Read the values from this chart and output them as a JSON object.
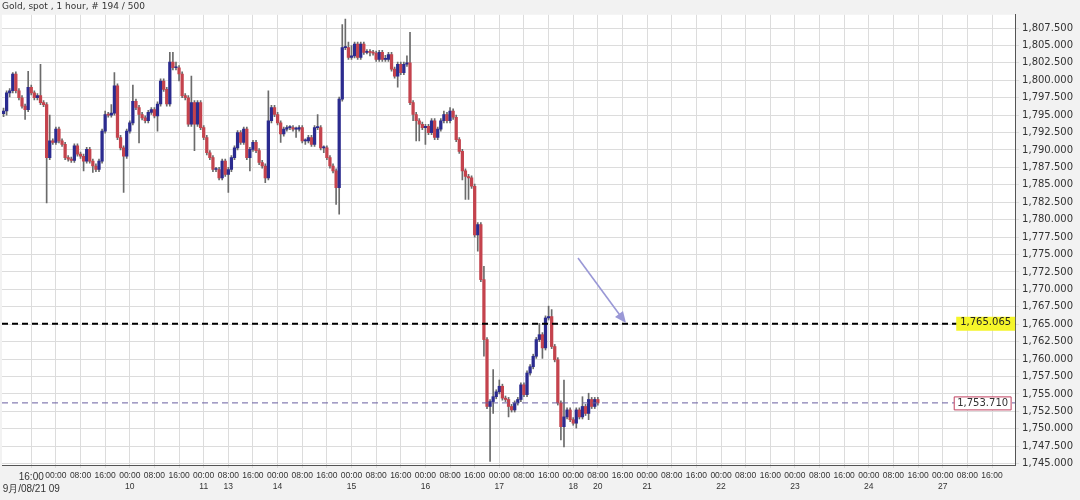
{
  "chart_data": {
    "type": "candlestick",
    "title": "Gold, spot , 1 hour, # 194 / 500",
    "categories": [
      null,
      null,
      null,
      null,
      null,
      null,
      null,
      null,
      null,
      "16:00\n9月/08/21 09",
      null,
      null,
      null,
      null,
      null,
      null,
      null,
      "00:00",
      null,
      null,
      null,
      null,
      null,
      null,
      null,
      "08:00",
      null,
      null,
      null,
      null,
      null,
      null,
      null,
      "16:00",
      null,
      null,
      null,
      null,
      null,
      null,
      null,
      "00:00\n10",
      null,
      null,
      null,
      null,
      null,
      null,
      null,
      "08:00",
      null,
      null,
      null,
      null,
      null,
      null,
      null,
      "16:00",
      null,
      null,
      null,
      null,
      null,
      null,
      null,
      "00:00\n11",
      null,
      null,
      null,
      null,
      null,
      null,
      null,
      "08:00\n13",
      null,
      null,
      null,
      null,
      null,
      null,
      null,
      "16:00",
      null,
      null,
      null,
      null,
      null,
      null,
      null,
      "00:00\n14",
      null,
      null,
      null,
      null,
      null,
      null,
      null,
      "08:00",
      null,
      null,
      null,
      null,
      null,
      null,
      null,
      "16:00",
      null,
      null,
      null,
      null,
      null,
      null,
      null,
      "00:00\n15",
      null,
      null,
      null,
      null,
      null,
      null,
      null,
      "08:00",
      null,
      null,
      null,
      null,
      null,
      null,
      null,
      "16:00",
      null,
      null,
      null,
      null,
      null,
      null,
      null,
      "00:00\n16",
      null,
      null,
      null,
      null,
      null,
      null,
      null,
      "08:00",
      null,
      null,
      null,
      null,
      null,
      null,
      null,
      "16:00",
      null,
      null,
      null,
      null,
      null,
      null,
      null,
      "00:00\n17",
      null,
      null,
      null,
      null,
      null,
      null,
      null,
      "08:00",
      null,
      null,
      null,
      null,
      null,
      null,
      null,
      "16:00",
      null,
      null,
      null,
      null,
      null,
      null,
      null,
      "00:00\n18",
      null,
      null,
      null,
      null,
      null,
      null,
      null,
      "08:00\n20",
      null,
      null,
      null,
      null,
      null,
      null,
      null,
      "16:00",
      null,
      null,
      null,
      null,
      null,
      null,
      null,
      "00:00\n21",
      null,
      null,
      null,
      null,
      null,
      null,
      null,
      "08:00",
      null,
      null,
      null,
      null,
      null,
      null,
      null,
      "16:00",
      null,
      null,
      null,
      null,
      null,
      null,
      null,
      "00:00\n22",
      null,
      null,
      null,
      null,
      null,
      null,
      null,
      "08:00",
      null,
      null,
      null,
      null,
      null,
      null,
      null,
      "16:00",
      null,
      null,
      null,
      null,
      null,
      null,
      null,
      "00:00\n23",
      null,
      null,
      null,
      null,
      null,
      null,
      null,
      "08:00",
      null,
      null,
      null,
      null,
      null,
      null,
      null,
      "16:00",
      null,
      null,
      null,
      null,
      null,
      null,
      null,
      "00:00\n24",
      null,
      null,
      null,
      null,
      null,
      null,
      null,
      "08:00",
      null,
      null,
      null,
      null,
      null,
      null,
      null,
      "16:00",
      null,
      null,
      null,
      null,
      null,
      null,
      null,
      "00:00\n27",
      null,
      null,
      null,
      null,
      null,
      null,
      null,
      "08:00",
      null,
      null,
      null,
      null,
      null,
      null,
      null,
      "16:00",
      null,
      null,
      null,
      null,
      null,
      null,
      null
    ],
    "ohlc": [
      [
        1795.2,
        1796.0,
        1794.8,
        1795.6
      ],
      [
        1795.6,
        1798.5,
        1795.0,
        1798.2
      ],
      [
        1798.2,
        1798.8,
        1797.6,
        1798.5
      ],
      [
        1798.5,
        1801.1,
        1798.2,
        1800.9
      ],
      [
        1800.9,
        1801.2,
        1798.2,
        1798.5
      ],
      [
        1798.5,
        1798.8,
        1797.2,
        1797.5
      ],
      [
        1797.5,
        1797.8,
        1796.0,
        1796.3
      ],
      [
        1796.3,
        1796.6,
        1794.4,
        1795.8
      ],
      [
        1795.8,
        1801.3,
        1795.5,
        1799.0
      ],
      [
        1799.0,
        1799.3,
        1797.9,
        1798.2
      ],
      [
        1798.2,
        1798.5,
        1797.2,
        1797.5
      ],
      [
        1797.5,
        1798.1,
        1797.2,
        1797.8
      ],
      [
        1797.8,
        1802.3,
        1796.5,
        1796.8
      ],
      [
        1796.8,
        1797.1,
        1796.2,
        1796.5
      ],
      [
        1796.5,
        1796.8,
        1782.4,
        1788.9
      ],
      [
        1788.9,
        1795.0,
        1788.6,
        1791.3
      ],
      [
        1791.3,
        1791.6,
        1790.8,
        1791.1
      ],
      [
        1791.1,
        1793.3,
        1790.8,
        1793.0
      ],
      [
        1793.0,
        1793.3,
        1791.0,
        1791.3
      ],
      [
        1791.3,
        1791.6,
        1790.5,
        1790.8
      ],
      [
        1790.8,
        1791.1,
        1788.6,
        1788.9
      ],
      [
        1788.9,
        1789.2,
        1788.4,
        1788.7
      ],
      [
        1788.7,
        1789.0,
        1788.2,
        1788.5
      ],
      [
        1788.5,
        1790.9,
        1788.2,
        1790.6
      ],
      [
        1790.6,
        1790.9,
        1789.1,
        1789.4
      ],
      [
        1789.4,
        1789.7,
        1788.8,
        1789.1
      ],
      [
        1789.1,
        1789.4,
        1787.0,
        1788.4
      ],
      [
        1788.4,
        1790.4,
        1788.1,
        1790.1
      ],
      [
        1790.1,
        1790.4,
        1788.1,
        1788.4
      ],
      [
        1788.4,
        1788.7,
        1786.8,
        1787.7
      ],
      [
        1787.7,
        1788.0,
        1786.9,
        1787.2
      ],
      [
        1787.2,
        1788.7,
        1786.9,
        1788.4
      ],
      [
        1788.4,
        1793.0,
        1788.1,
        1792.7
      ],
      [
        1792.7,
        1795.6,
        1792.4,
        1795.1
      ],
      [
        1795.1,
        1795.4,
        1794.7,
        1795.0
      ],
      [
        1795.0,
        1796.5,
        1794.7,
        1795.3
      ],
      [
        1795.3,
        1801.1,
        1795.0,
        1799.2
      ],
      [
        1799.2,
        1799.5,
        1791.5,
        1791.8
      ],
      [
        1791.8,
        1792.1,
        1790.0,
        1790.3
      ],
      [
        1790.3,
        1790.6,
        1783.9,
        1789.1
      ],
      [
        1789.1,
        1793.0,
        1788.8,
        1792.7
      ],
      [
        1792.7,
        1794.2,
        1792.4,
        1793.9
      ],
      [
        1793.9,
        1799.3,
        1793.6,
        1797.0
      ],
      [
        1797.0,
        1797.3,
        1795.8,
        1796.1
      ],
      [
        1796.1,
        1796.4,
        1791.0,
        1795.1
      ],
      [
        1795.1,
        1795.4,
        1794.3,
        1794.6
      ],
      [
        1794.6,
        1794.9,
        1793.9,
        1794.2
      ],
      [
        1794.2,
        1795.7,
        1793.9,
        1795.4
      ],
      [
        1795.4,
        1796.1,
        1795.1,
        1795.8
      ],
      [
        1795.8,
        1796.1,
        1794.6,
        1794.9
      ],
      [
        1794.9,
        1796.9,
        1792.7,
        1796.6
      ],
      [
        1796.6,
        1800.2,
        1796.3,
        1799.9
      ],
      [
        1799.9,
        1800.2,
        1798.4,
        1798.7
      ],
      [
        1798.7,
        1799.0,
        1796.3,
        1796.6
      ],
      [
        1796.6,
        1804.0,
        1796.3,
        1802.6
      ],
      [
        1802.6,
        1804.0,
        1801.5,
        1801.8
      ],
      [
        1801.8,
        1802.6,
        1801.5,
        1801.8
      ],
      [
        1801.8,
        1802.1,
        1799.9,
        1800.9
      ],
      [
        1800.9,
        1801.2,
        1797.5,
        1797.8
      ],
      [
        1797.8,
        1798.1,
        1797.2,
        1797.5
      ],
      [
        1797.5,
        1797.8,
        1793.4,
        1793.7
      ],
      [
        1793.7,
        1800.6,
        1793.4,
        1796.8
      ],
      [
        1796.8,
        1797.1,
        1789.9,
        1793.7
      ],
      [
        1793.7,
        1797.1,
        1793.4,
        1796.8
      ],
      [
        1796.8,
        1797.1,
        1792.9,
        1793.2
      ],
      [
        1793.2,
        1793.5,
        1791.5,
        1791.8
      ],
      [
        1791.8,
        1792.1,
        1789.3,
        1789.6
      ],
      [
        1789.6,
        1789.9,
        1788.6,
        1788.9
      ],
      [
        1788.9,
        1789.2,
        1786.9,
        1787.2
      ],
      [
        1787.2,
        1787.5,
        1786.9,
        1787.2
      ],
      [
        1787.2,
        1787.5,
        1785.7,
        1786.0
      ],
      [
        1786.0,
        1788.7,
        1785.7,
        1788.4
      ],
      [
        1788.4,
        1788.7,
        1786.2,
        1786.5
      ],
      [
        1786.5,
        1787.5,
        1783.9,
        1787.2
      ],
      [
        1787.2,
        1789.2,
        1786.9,
        1788.9
      ],
      [
        1788.9,
        1790.6,
        1788.6,
        1790.3
      ],
      [
        1790.3,
        1792.8,
        1790.0,
        1792.5
      ],
      [
        1792.5,
        1792.8,
        1790.8,
        1791.1
      ],
      [
        1791.1,
        1793.3,
        1790.8,
        1793.0
      ],
      [
        1793.0,
        1793.3,
        1788.6,
        1788.9
      ],
      [
        1788.9,
        1790.4,
        1787.0,
        1790.1
      ],
      [
        1790.1,
        1791.4,
        1789.8,
        1791.1
      ],
      [
        1791.1,
        1791.4,
        1789.6,
        1789.9
      ],
      [
        1789.9,
        1790.2,
        1787.9,
        1788.2
      ],
      [
        1788.2,
        1788.5,
        1787.4,
        1787.7
      ],
      [
        1787.7,
        1788.0,
        1785.3,
        1786.0
      ],
      [
        1786.0,
        1798.5,
        1785.7,
        1794.2
      ],
      [
        1794.2,
        1796.4,
        1793.9,
        1796.1
      ],
      [
        1796.1,
        1796.4,
        1794.8,
        1795.1
      ],
      [
        1795.1,
        1795.4,
        1793.6,
        1793.9
      ],
      [
        1793.9,
        1794.2,
        1791.1,
        1792.3
      ],
      [
        1792.3,
        1793.3,
        1792.0,
        1793.0
      ],
      [
        1793.0,
        1793.5,
        1792.7,
        1793.2
      ],
      [
        1793.2,
        1793.5,
        1792.9,
        1793.2
      ],
      [
        1793.2,
        1793.5,
        1792.7,
        1793.0
      ],
      [
        1793.0,
        1793.3,
        1791.8,
        1793.0
      ],
      [
        1793.0,
        1793.5,
        1792.7,
        1793.2
      ],
      [
        1793.2,
        1793.5,
        1791.0,
        1791.3
      ],
      [
        1791.3,
        1791.6,
        1790.8,
        1791.3
      ],
      [
        1791.3,
        1792.1,
        1791.0,
        1791.8
      ],
      [
        1791.8,
        1792.1,
        1790.5,
        1790.8
      ],
      [
        1790.8,
        1793.5,
        1790.5,
        1793.2
      ],
      [
        1793.2,
        1795.1,
        1792.9,
        1793.2
      ],
      [
        1793.2,
        1793.5,
        1790.0,
        1790.3
      ],
      [
        1790.3,
        1790.6,
        1789.6,
        1790.3
      ],
      [
        1790.3,
        1790.6,
        1788.6,
        1788.9
      ],
      [
        1788.9,
        1789.2,
        1787.4,
        1787.7
      ],
      [
        1787.7,
        1788.0,
        1786.7,
        1787.0
      ],
      [
        1787.0,
        1787.3,
        1782.2,
        1784.6
      ],
      [
        1784.6,
        1797.6,
        1780.8,
        1797.3
      ],
      [
        1797.3,
        1808.0,
        1797.0,
        1804.7
      ],
      [
        1804.7,
        1808.8,
        1804.4,
        1804.7
      ],
      [
        1804.7,
        1805.5,
        1803.0,
        1803.3
      ],
      [
        1803.3,
        1805.0,
        1803.0,
        1803.5
      ],
      [
        1803.5,
        1805.5,
        1803.2,
        1805.2
      ],
      [
        1805.2,
        1805.5,
        1803.0,
        1803.3
      ],
      [
        1803.3,
        1805.5,
        1803.0,
        1805.2
      ],
      [
        1805.2,
        1805.5,
        1803.7,
        1804.0
      ],
      [
        1804.0,
        1804.4,
        1803.8,
        1804.1
      ],
      [
        1804.1,
        1804.4,
        1803.5,
        1804.0
      ],
      [
        1804.0,
        1804.3,
        1803.6,
        1803.9
      ],
      [
        1803.9,
        1804.2,
        1802.7,
        1803.0
      ],
      [
        1803.0,
        1804.3,
        1802.7,
        1804.0
      ],
      [
        1804.0,
        1804.3,
        1802.7,
        1803.0
      ],
      [
        1803.0,
        1803.6,
        1802.7,
        1803.0
      ],
      [
        1803.0,
        1804.0,
        1802.7,
        1803.7
      ],
      [
        1803.7,
        1804.0,
        1801.3,
        1801.6
      ],
      [
        1801.6,
        1801.9,
        1800.3,
        1800.6
      ],
      [
        1800.6,
        1802.6,
        1799.0,
        1802.3
      ],
      [
        1802.3,
        1802.6,
        1800.8,
        1801.1
      ],
      [
        1801.1,
        1802.6,
        1800.8,
        1802.3
      ],
      [
        1802.3,
        1803.5,
        1802.0,
        1802.5
      ],
      [
        1802.5,
        1806.9,
        1796.5,
        1796.8
      ],
      [
        1796.8,
        1797.1,
        1794.2,
        1795.1
      ],
      [
        1795.1,
        1795.4,
        1791.3,
        1794.2
      ],
      [
        1794.2,
        1794.5,
        1791.3,
        1793.7
      ],
      [
        1793.7,
        1794.0,
        1792.9,
        1793.2
      ],
      [
        1793.2,
        1793.7,
        1790.8,
        1793.4
      ],
      [
        1793.4,
        1793.7,
        1792.2,
        1792.5
      ],
      [
        1792.5,
        1794.5,
        1792.2,
        1794.2
      ],
      [
        1794.2,
        1794.5,
        1791.5,
        1791.8
      ],
      [
        1791.8,
        1793.3,
        1791.5,
        1793.0
      ],
      [
        1793.0,
        1794.5,
        1792.7,
        1794.2
      ],
      [
        1794.2,
        1795.6,
        1793.9,
        1795.1
      ],
      [
        1795.1,
        1795.4,
        1793.9,
        1794.2
      ],
      [
        1794.2,
        1796.1,
        1793.9,
        1795.6
      ],
      [
        1795.6,
        1795.9,
        1794.4,
        1794.7
      ],
      [
        1794.7,
        1795.0,
        1791.2,
        1791.5
      ],
      [
        1791.5,
        1791.8,
        1789.5,
        1789.8
      ],
      [
        1789.8,
        1790.1,
        1785.7,
        1787.0
      ],
      [
        1787.0,
        1787.3,
        1782.9,
        1786.2
      ],
      [
        1786.2,
        1786.5,
        1782.9,
        1786.0
      ],
      [
        1786.0,
        1786.3,
        1784.5,
        1784.8
      ],
      [
        1784.8,
        1785.1,
        1777.5,
        1777.8
      ],
      [
        1777.8,
        1779.6,
        1775.5,
        1779.3
      ],
      [
        1779.3,
        1779.6,
        1771.1,
        1771.4
      ],
      [
        1771.4,
        1773.3,
        1760.4,
        1762.8
      ],
      [
        1762.8,
        1763.1,
        1752.9,
        1753.2
      ],
      [
        1753.2,
        1754.2,
        1745.3,
        1753.9
      ],
      [
        1753.9,
        1758.5,
        1752.2,
        1754.6
      ],
      [
        1754.6,
        1755.6,
        1754.3,
        1755.3
      ],
      [
        1755.3,
        1757.0,
        1755.0,
        1756.1
      ],
      [
        1756.1,
        1756.4,
        1754.1,
        1754.4
      ],
      [
        1754.4,
        1754.7,
        1753.9,
        1754.2
      ],
      [
        1754.2,
        1754.5,
        1751.7,
        1753.2
      ],
      [
        1753.2,
        1753.5,
        1752.4,
        1752.7
      ],
      [
        1752.7,
        1754.0,
        1752.4,
        1753.7
      ],
      [
        1753.7,
        1754.5,
        1753.4,
        1754.2
      ],
      [
        1754.2,
        1756.6,
        1753.9,
        1756.3
      ],
      [
        1756.3,
        1756.6,
        1754.6,
        1754.9
      ],
      [
        1754.9,
        1758.3,
        1754.6,
        1758.0
      ],
      [
        1758.0,
        1759.2,
        1757.7,
        1758.9
      ],
      [
        1758.9,
        1760.7,
        1758.6,
        1760.4
      ],
      [
        1760.4,
        1763.1,
        1760.1,
        1762.8
      ],
      [
        1762.8,
        1765.1,
        1762.5,
        1763.5
      ],
      [
        1763.5,
        1763.8,
        1760.1,
        1761.6
      ],
      [
        1761.6,
        1766.2,
        1761.3,
        1765.9
      ],
      [
        1765.9,
        1767.6,
        1765.6,
        1766.1
      ],
      [
        1766.1,
        1767.1,
        1761.5,
        1761.8
      ],
      [
        1761.8,
        1762.1,
        1759.6,
        1759.9
      ],
      [
        1759.9,
        1760.2,
        1753.4,
        1753.7
      ],
      [
        1753.7,
        1754.0,
        1748.4,
        1750.3
      ],
      [
        1750.3,
        1757.0,
        1747.4,
        1751.7
      ],
      [
        1751.7,
        1753.0,
        1751.4,
        1752.7
      ],
      [
        1752.7,
        1753.0,
        1751.0,
        1751.3
      ],
      [
        1751.3,
        1751.6,
        1750.5,
        1750.8
      ],
      [
        1750.8,
        1753.0,
        1750.1,
        1752.7
      ],
      [
        1752.7,
        1753.0,
        1751.4,
        1751.7
      ],
      [
        1751.7,
        1754.6,
        1751.4,
        1753.2
      ],
      [
        1753.2,
        1753.5,
        1751.9,
        1752.2
      ],
      [
        1752.2,
        1755.1,
        1751.3,
        1754.2
      ],
      [
        1754.2,
        1754.5,
        1752.9,
        1753.2
      ],
      [
        1753.2,
        1754.5,
        1752.9,
        1754.2
      ],
      [
        1754.2,
        1754.5,
        1753.4,
        1753.7
      ],
      null,
      null,
      null,
      null,
      null,
      null,
      null,
      null,
      null,
      null,
      null,
      null,
      null,
      null,
      null,
      null,
      null,
      null,
      null,
      null,
      null,
      null,
      null,
      null,
      null,
      null,
      null,
      null,
      null,
      null,
      null,
      null,
      null,
      null,
      null,
      null,
      null,
      null,
      null,
      null,
      null,
      null,
      null,
      null,
      null,
      null,
      null,
      null,
      null,
      null,
      null,
      null,
      null,
      null,
      null,
      null,
      null,
      null,
      null,
      null,
      null,
      null,
      null,
      null,
      null,
      null,
      null,
      null,
      null,
      null,
      null,
      null,
      null,
      null,
      null,
      null,
      null,
      null,
      null,
      null,
      null,
      null,
      null,
      null,
      null,
      null,
      null,
      null,
      null,
      null,
      null,
      null,
      null,
      null,
      null,
      null,
      null,
      null,
      null,
      null,
      null,
      null,
      null,
      null,
      null,
      null,
      null,
      null,
      null,
      null,
      null,
      null,
      null,
      null,
      null,
      null,
      null,
      null,
      null,
      null,
      null,
      null,
      null,
      null,
      null,
      null,
      null,
      null,
      null,
      null,
      null,
      null,
      null,
      null,
      null
    ],
    "ylim": [
      1744.8,
      1809.4
    ],
    "yticks": [
      {
        "value": 1745,
        "label": "1,745.000"
      },
      {
        "value": 1747.5,
        "label": "1,747.500"
      },
      {
        "value": 1750,
        "label": "1,750.000"
      },
      {
        "value": 1752.5,
        "label": "1,752.500"
      },
      {
        "value": 1755,
        "label": "1,755.000"
      },
      {
        "value": 1757.5,
        "label": "1,757.500"
      },
      {
        "value": 1760,
        "label": "1,760.000"
      },
      {
        "value": 1762.5,
        "label": "1,762.500"
      },
      {
        "value": 1765,
        "label": "1,765.000"
      },
      {
        "value": 1767.5,
        "label": "1,767.500"
      },
      {
        "value": 1770,
        "label": "1,770.000"
      },
      {
        "value": 1772.5,
        "label": "1,772.500"
      },
      {
        "value": 1775,
        "label": "1,775.000"
      },
      {
        "value": 1777.5,
        "label": "1,777.500"
      },
      {
        "value": 1780,
        "label": "1,780.000"
      },
      {
        "value": 1782.5,
        "label": "1,782.500"
      },
      {
        "value": 1785,
        "label": "1,785.000"
      },
      {
        "value": 1787.5,
        "label": "1,787.500"
      },
      {
        "value": 1790,
        "label": "1,790.000"
      },
      {
        "value": 1792.5,
        "label": "1,792.500"
      },
      {
        "value": 1795,
        "label": "1,795.000"
      },
      {
        "value": 1797.5,
        "label": "1,797.500"
      },
      {
        "value": 1800,
        "label": "1,800.000"
      },
      {
        "value": 1802.5,
        "label": "1,802.500"
      },
      {
        "value": 1805,
        "label": "1,805.000"
      },
      {
        "value": 1807.5,
        "label": "1,807.500"
      }
    ],
    "ref_lines": [
      {
        "axis": "y",
        "value": 1765.065,
        "label": "1,765.065",
        "color": "#000000",
        "line_style": "dashed"
      },
      {
        "axis": "y",
        "value": 1753.71,
        "label": "1,753.710",
        "color": "#6a5fa0",
        "line_style": "dashed"
      }
    ],
    "grid": true,
    "legend": false
  }
}
